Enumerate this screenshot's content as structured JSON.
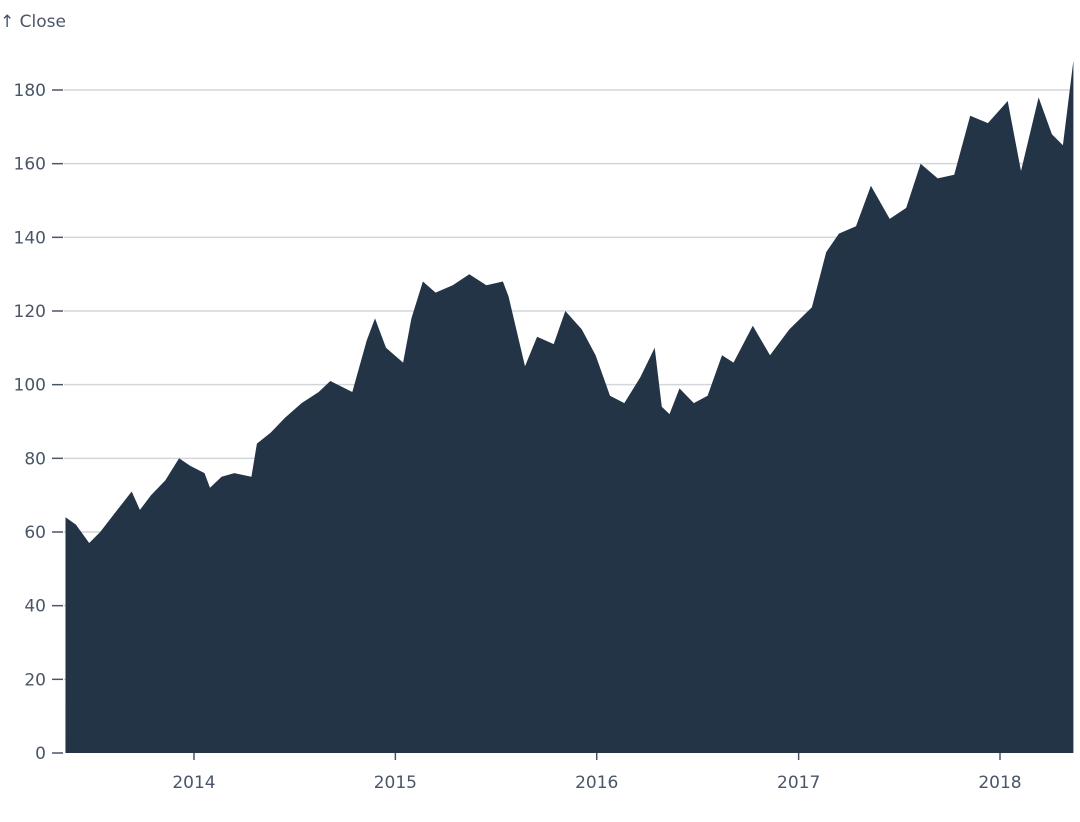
{
  "chart_data": {
    "type": "area",
    "title": "",
    "ylabel": "↑ Close",
    "xlabel": "",
    "ylim": [
      0,
      190
    ],
    "xlim": [
      "2013-05-13",
      "2018-05-14"
    ],
    "grid": "y",
    "yticks": [
      0,
      20,
      40,
      60,
      80,
      100,
      120,
      140,
      160,
      180
    ],
    "xticks": [
      "2014",
      "2015",
      "2016",
      "2017",
      "2018"
    ],
    "color": "#233446",
    "x": [
      "2013-05-13",
      "2013-06-01",
      "2013-06-25",
      "2013-07-15",
      "2013-08-15",
      "2013-09-10",
      "2013-09-25",
      "2013-10-15",
      "2013-11-10",
      "2013-12-05",
      "2013-12-25",
      "2014-01-20",
      "2014-01-30",
      "2014-02-20",
      "2014-03-15",
      "2014-04-15",
      "2014-04-25",
      "2014-05-20",
      "2014-06-15",
      "2014-07-15",
      "2014-08-15",
      "2014-09-05",
      "2014-10-15",
      "2014-11-10",
      "2014-11-25",
      "2014-12-15",
      "2015-01-15",
      "2015-01-30",
      "2015-02-20",
      "2015-03-15",
      "2015-04-15",
      "2015-05-15",
      "2015-06-15",
      "2015-07-15",
      "2015-07-25",
      "2015-08-24",
      "2015-09-15",
      "2015-10-15",
      "2015-11-05",
      "2015-12-05",
      "2015-12-30",
      "2016-01-25",
      "2016-02-20",
      "2016-03-20",
      "2016-04-15",
      "2016-04-28",
      "2016-05-12",
      "2016-05-30",
      "2016-06-25",
      "2016-07-20",
      "2016-08-15",
      "2016-09-05",
      "2016-10-10",
      "2016-11-10",
      "2016-12-15",
      "2017-01-25",
      "2017-02-20",
      "2017-03-15",
      "2017-04-15",
      "2017-05-12",
      "2017-06-15",
      "2017-07-15",
      "2017-08-10",
      "2017-09-10",
      "2017-10-10",
      "2017-11-08",
      "2017-12-10",
      "2018-01-15",
      "2018-02-08",
      "2018-03-12",
      "2018-04-05",
      "2018-04-25",
      "2018-05-14"
    ],
    "values": [
      64,
      62,
      57,
      60,
      66,
      71,
      66,
      70,
      74,
      80,
      78,
      76,
      72,
      75,
      76,
      75,
      84,
      87,
      91,
      95,
      98,
      101,
      98,
      112,
      118,
      110,
      106,
      118,
      128,
      125,
      127,
      130,
      127,
      128,
      124,
      105,
      113,
      111,
      120,
      115,
      108,
      97,
      95,
      102,
      110,
      94,
      92,
      99,
      95,
      97,
      108,
      106,
      116,
      108,
      115,
      121,
      136,
      141,
      143,
      154,
      145,
      148,
      160,
      156,
      157,
      173,
      171,
      177,
      158,
      178,
      168,
      165,
      188
    ]
  }
}
